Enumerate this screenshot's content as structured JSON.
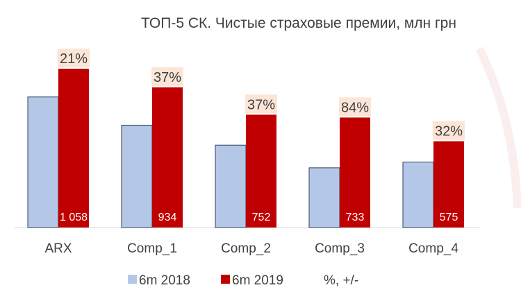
{
  "chart_data": {
    "type": "bar",
    "title": "ТОП-5 СК. Чистые страховые премии, млн грн",
    "categories": [
      "ARX",
      "Comp_1",
      "Comp_2",
      "Comp_3",
      "Comp_4"
    ],
    "series": [
      {
        "name": "6m 2018",
        "values": [
          870,
          682,
          549,
          398,
          436
        ],
        "color": "#b4c7e7"
      },
      {
        "name": "6m 2019",
        "values": [
          1058,
          934,
          752,
          733,
          575
        ],
        "color": "#c00000"
      }
    ],
    "data_labels_2019": [
      "1 058",
      "934",
      "752",
      "733",
      "575"
    ],
    "change_labels": [
      "21%",
      "37%",
      "37%",
      "84%",
      "32%"
    ],
    "change_series_name": "%, +/-",
    "change_label_bg": "#fbe5d6",
    "ylim": [
      0,
      1100
    ],
    "grid": false,
    "legend_position": "bottom"
  }
}
